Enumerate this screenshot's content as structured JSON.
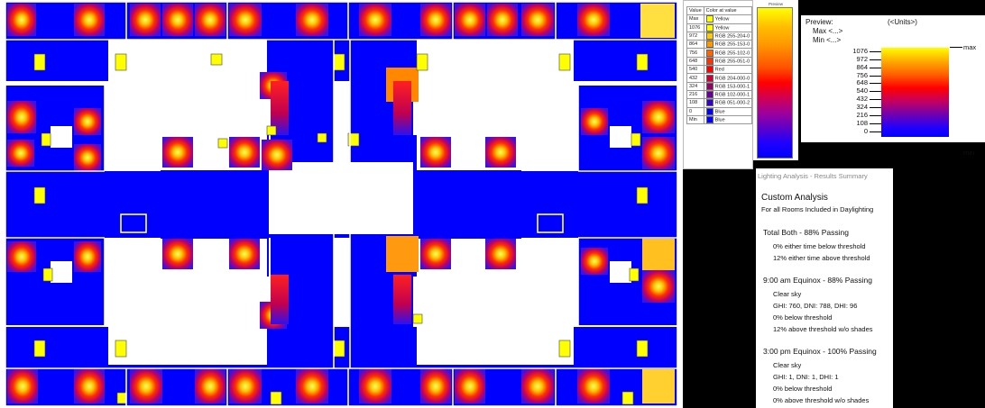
{
  "preview": {
    "title": "Preview:",
    "units": "(<Units>)",
    "max_label": "Max <...>",
    "min_label": "Min <...>",
    "ticks": [
      "1076",
      "972",
      "864",
      "756",
      "648",
      "540",
      "432",
      "324",
      "216",
      "108",
      "0"
    ],
    "bar_max": "max",
    "bar_min": "min"
  },
  "color_table": {
    "headers": [
      "Value",
      "Color at value"
    ],
    "rows": [
      {
        "value": "Max",
        "color": "Yellow",
        "hex": "#ffff00"
      },
      {
        "value": "1076",
        "color": "Yellow",
        "hex": "#ffff00"
      },
      {
        "value": "972",
        "color": "RGB 255-204-0",
        "hex": "#ffcc00"
      },
      {
        "value": "864",
        "color": "RGB 255-153-0",
        "hex": "#ff9900"
      },
      {
        "value": "756",
        "color": "RGB 255-102-0",
        "hex": "#ff6600"
      },
      {
        "value": "648",
        "color": "RGB 255-051-0",
        "hex": "#ff3300"
      },
      {
        "value": "540",
        "color": "Red",
        "hex": "#ff0000"
      },
      {
        "value": "432",
        "color": "RGB 204-000-0",
        "hex": "#cc0033"
      },
      {
        "value": "324",
        "color": "RGB 153-000-1",
        "hex": "#990066"
      },
      {
        "value": "216",
        "color": "RGB 102-000-1",
        "hex": "#660099"
      },
      {
        "value": "108",
        "color": "RGB 051-000-2",
        "hex": "#3300cc"
      },
      {
        "value": "0",
        "color": "Blue",
        "hex": "#0000ff"
      },
      {
        "value": "Min",
        "color": "Blue",
        "hex": "#0000ff"
      }
    ],
    "bar_caption": "Preview"
  },
  "summary": {
    "window_title": "Lighting Analysis - Results Summary",
    "heading": "Custom Analysis",
    "subheading": "For all Rooms Included in Daylighting",
    "sections": [
      {
        "title": "Total Both  - 88% Passing",
        "lines": [
          "0% either time below threshold",
          "12% either time above threshold"
        ]
      },
      {
        "title": "9:00 am Equinox  - 88% Passing",
        "lines": [
          "Clear sky",
          "GHI: 760, DNI: 788, DHI: 96",
          "0% below threshold",
          "12% above threshold w/o shades"
        ]
      },
      {
        "title": "3:00 pm Equinox  - 100% Passing",
        "lines": [
          "Clear sky",
          "GHI: 1, DNI: 1, DHI: 1",
          "0% below threshold",
          "0% above threshold w/o shades"
        ]
      }
    ]
  },
  "colors": {
    "blue": "#0000ff",
    "yellow": "#ffff00",
    "red": "#ff0000",
    "wall": "#ffffff",
    "background": "#000000"
  }
}
